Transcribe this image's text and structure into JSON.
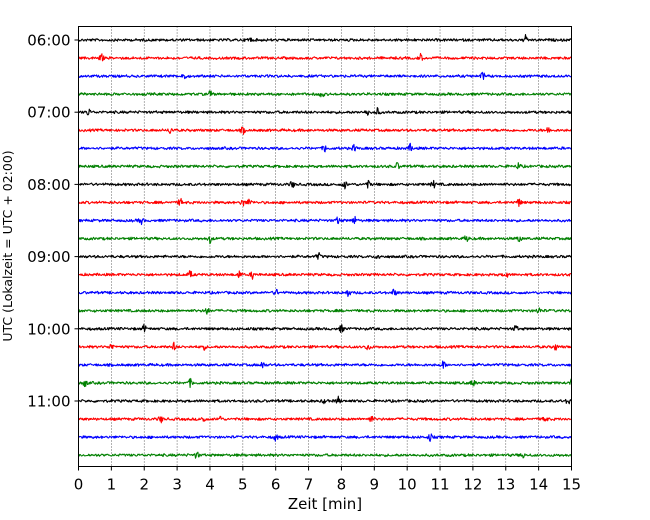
{
  "chart_data": {
    "type": "line",
    "title": "",
    "xlabel": "Zeit  [min]",
    "ylabel": "UTC (Lokalzeit = UTC + 02:00)",
    "xlim": [
      0,
      15
    ],
    "x_ticks": [
      0,
      1,
      2,
      3,
      4,
      5,
      6,
      7,
      8,
      9,
      10,
      11,
      12,
      13,
      14,
      15
    ],
    "y_tick_labels": [
      "06:00",
      "07:00",
      "08:00",
      "09:00",
      "10:00",
      "11:00"
    ],
    "grid": "vertical dotted lines at each minute",
    "trace_colors": [
      "#000000",
      "#ff0000",
      "#0000ff",
      "#008000"
    ],
    "traces": [
      {
        "start": "06:00",
        "events": [
          5.2,
          13.6
        ]
      },
      {
        "start": "06:15",
        "events": [
          0.7,
          10.4
        ]
      },
      {
        "start": "06:30",
        "events": [
          3.2,
          12.3
        ]
      },
      {
        "start": "06:45",
        "events": [
          4.0,
          7.4
        ]
      },
      {
        "start": "07:00",
        "events": [
          0.3,
          8.8,
          9.1
        ]
      },
      {
        "start": "07:15",
        "events": [
          2.8,
          5.0,
          14.3
        ]
      },
      {
        "start": "07:30",
        "events": [
          7.5,
          8.4,
          10.1
        ]
      },
      {
        "start": "07:45",
        "events": [
          9.7,
          13.4
        ]
      },
      {
        "start": "08:00",
        "events": [
          6.5,
          8.1,
          8.8,
          10.8
        ]
      },
      {
        "start": "08:15",
        "events": [
          3.1,
          5.0,
          5.2,
          13.4
        ]
      },
      {
        "start": "08:30",
        "events": [
          1.9,
          7.9,
          8.4
        ]
      },
      {
        "start": "08:45",
        "events": [
          4.0,
          11.8,
          13.4
        ]
      },
      {
        "start": "09:00",
        "events": [
          7.3,
          9.1
        ]
      },
      {
        "start": "09:15",
        "events": [
          3.4,
          4.9,
          5.3,
          13.0
        ]
      },
      {
        "start": "09:30",
        "events": [
          6.0,
          8.2,
          9.6
        ]
      },
      {
        "start": "09:45",
        "events": [
          3.9,
          14.0
        ]
      },
      {
        "start": "10:00",
        "events": [
          2.0,
          8.0,
          13.3
        ]
      },
      {
        "start": "10:15",
        "events": [
          1.0,
          2.9,
          3.8,
          8.8,
          14.5
        ]
      },
      {
        "start": "10:30",
        "events": [
          5.6,
          11.1
        ]
      },
      {
        "start": "10:45",
        "events": [
          0.2,
          3.4,
          12.0,
          15.0
        ]
      },
      {
        "start": "11:00",
        "events": [
          7.5,
          7.9,
          14.9
        ]
      },
      {
        "start": "11:15",
        "events": [
          2.5,
          3.8,
          4.3,
          8.9,
          14.2
        ]
      },
      {
        "start": "11:30",
        "events": [
          6.0,
          10.7
        ]
      },
      {
        "start": "11:45",
        "events": [
          3.6,
          13.5
        ]
      }
    ]
  }
}
